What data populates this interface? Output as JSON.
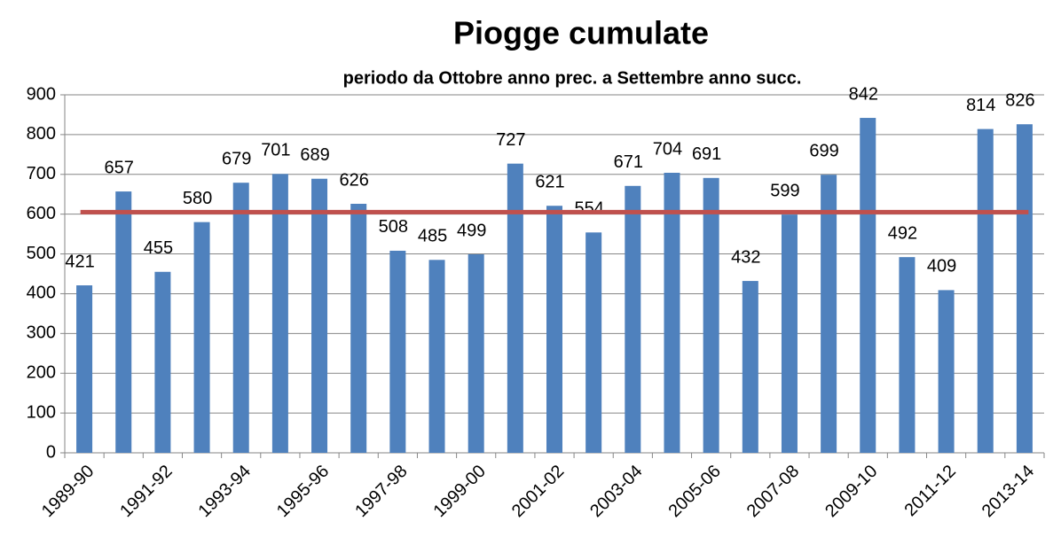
{
  "chart_data": {
    "type": "bar",
    "title": "Piogge cumulate",
    "subtitle": "periodo  da Ottobre anno prec. a Settembre  anno succ.",
    "categories": [
      "1989-90",
      null,
      "1991-92",
      null,
      "1993-94",
      null,
      "1995-96",
      null,
      "1997-98",
      null,
      "1999-00",
      null,
      "2001-02",
      null,
      "2003-04",
      null,
      "2005-06",
      null,
      "2007-08",
      null,
      "2009-10",
      null,
      "2011-12",
      null,
      "2013-14"
    ],
    "values": [
      421,
      657,
      455,
      580,
      679,
      701,
      689,
      626,
      508,
      485,
      499,
      727,
      621,
      554,
      671,
      704,
      691,
      432,
      599,
      699,
      842,
      492,
      409,
      814,
      826
    ],
    "color": "#4f81bd",
    "reference_line": {
      "value": 605,
      "color": "#c0504d"
    },
    "ylim": [
      0,
      900
    ],
    "yticks": [
      0,
      100,
      200,
      300,
      400,
      500,
      600,
      700,
      800,
      900
    ],
    "grid": true
  }
}
